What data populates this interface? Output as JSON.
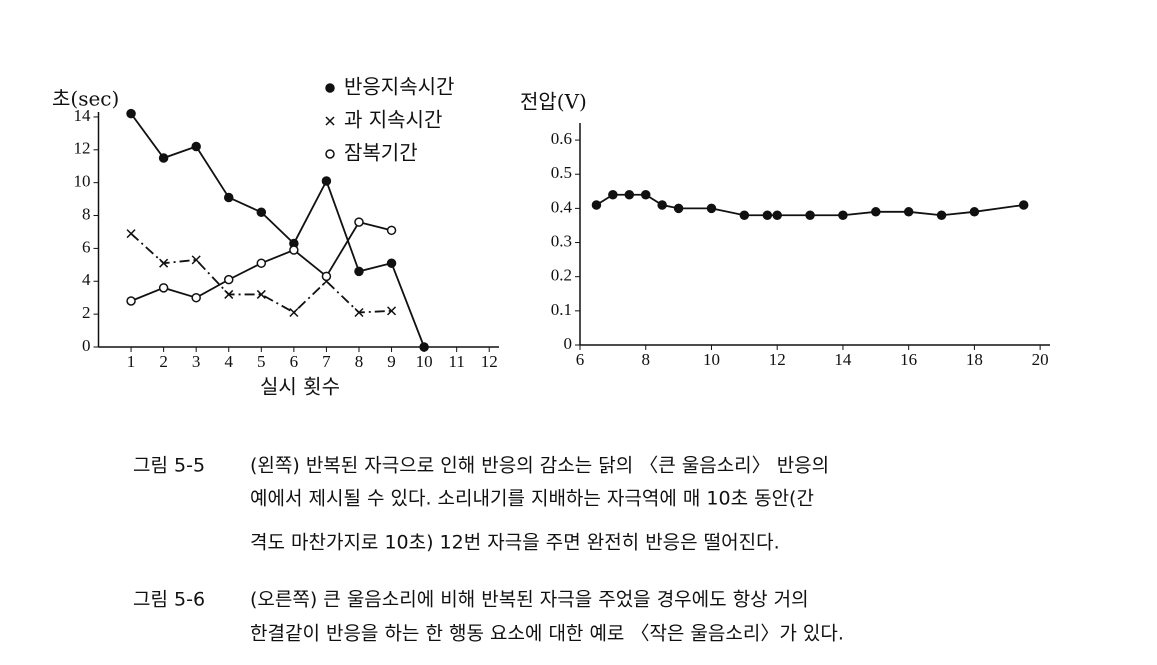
{
  "chart_data": [
    {
      "type": "line",
      "y_label": "초(sec)",
      "x_label": "실시 횟수",
      "xlim": [
        0,
        12.3
      ],
      "ylim": [
        0,
        14.3
      ],
      "xticks": [
        1,
        2,
        3,
        4,
        5,
        6,
        7,
        8,
        9,
        10,
        11,
        12
      ],
      "yticks": [
        0,
        2,
        4,
        6,
        8,
        10,
        12,
        14
      ],
      "series": [
        {
          "name": "반응지속시간",
          "color": "#111111",
          "marker": "filled",
          "line_style": "solid",
          "x": [
            1,
            2,
            3,
            4,
            5,
            6,
            7,
            8,
            9,
            10
          ],
          "values": [
            14.2,
            11.5,
            12.2,
            9.1,
            8.2,
            6.3,
            10.1,
            4.6,
            5.1,
            0
          ]
        },
        {
          "name": "과 지속시간",
          "color": "#111111",
          "marker": "x",
          "line_style": "dashed",
          "x": [
            1,
            2,
            3,
            4,
            5,
            6,
            7,
            8,
            9
          ],
          "values": [
            6.9,
            5.1,
            5.3,
            3.2,
            3.2,
            2.1,
            4.0,
            2.1,
            2.2
          ]
        },
        {
          "name": "잠복기간",
          "color": "#111111",
          "marker": "open",
          "line_style": "solid",
          "x": [
            1,
            2,
            3,
            4,
            5,
            6,
            7,
            8,
            9
          ],
          "values": [
            2.8,
            3.6,
            3.0,
            4.1,
            5.1,
            5.9,
            4.3,
            7.6,
            7.1
          ]
        }
      ]
    },
    {
      "type": "line",
      "y_label": "전압(V)",
      "xlim": [
        6,
        20.3
      ],
      "ylim": [
        0,
        0.65
      ],
      "xticks": [
        6,
        8,
        10,
        12,
        14,
        16,
        18,
        20
      ],
      "yticks": [
        0,
        0.1,
        0.2,
        0.3,
        0.4,
        0.5,
        0.6
      ],
      "series": [
        {
          "color": "#111111",
          "marker": "filled",
          "line_style": "solid",
          "x": [
            6.5,
            7,
            7.5,
            8,
            8.5,
            9,
            10,
            11,
            11.7,
            12,
            13,
            14,
            15,
            16,
            17,
            18,
            19.5
          ],
          "values": [
            0.41,
            0.44,
            0.44,
            0.44,
            0.41,
            0.4,
            0.4,
            0.38,
            0.38,
            0.38,
            0.38,
            0.38,
            0.39,
            0.39,
            0.38,
            0.39,
            0.41
          ]
        }
      ]
    }
  ],
  "captions": [
    {
      "label": "그림 5-5",
      "lines": [
        "(왼쪽) 반복된 자극으로 인해 반응의 감소는 닭의 〈큰 울음소리〉 반응의",
        "예에서 제시될 수 있다. 소리내기를 지배하는 자극역에 매 10초 동안(간",
        "격도 마찬가지로 10초) 12번 자극을 주면 완전히 반응은 떨어진다."
      ]
    },
    {
      "label": "그림 5-6",
      "lines": [
        "(오른쪽) 큰 울음소리에 비해 반복된 자극을 주었을 경우에도 항상 거의",
        "한결같이 반응을 하는 한 행동 요소에 대한 예로 〈작은 울음소리〉가 있다."
      ]
    }
  ]
}
